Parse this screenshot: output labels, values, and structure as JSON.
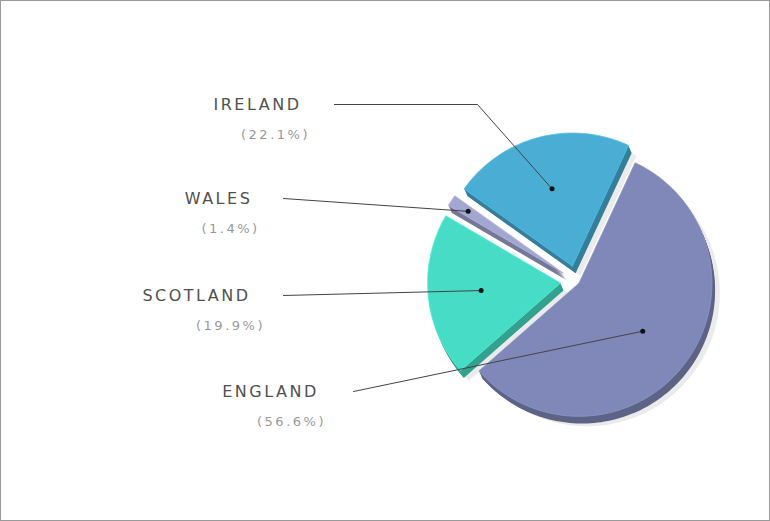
{
  "chart_data": {
    "type": "pie",
    "categories": [
      "IRELAND",
      "WALES",
      "SCOTLAND",
      "ENGLAND"
    ],
    "values": [
      22.1,
      1.4,
      19.9,
      56.6
    ],
    "value_labels": [
      "(22.1%)",
      "(1.4%)",
      "(19.9%)",
      "(56.6%)"
    ],
    "colors": [
      "#4aadd3",
      "#a3a6d0",
      "#47dcc6",
      "#7f88b8"
    ],
    "data_labels": true
  }
}
